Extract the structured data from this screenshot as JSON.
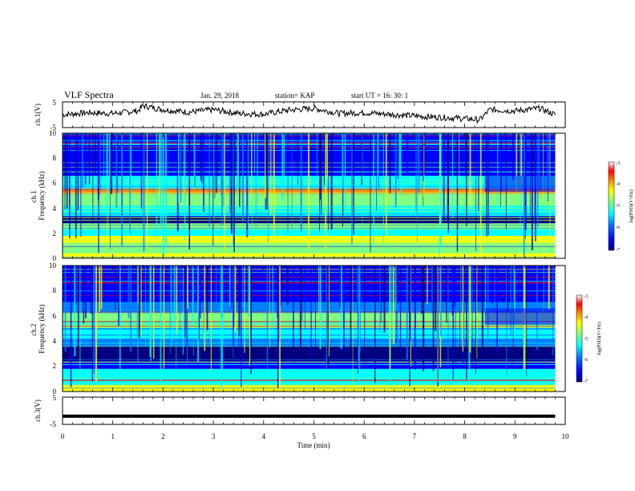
{
  "header": {
    "title": "VLF Spectra",
    "date": "Jan. 29, 2018",
    "station": "station= KAP",
    "start_ut": "start  UT =   16: 30: 1"
  },
  "colors": {
    "line": "#000000",
    "colormap": [
      "#000080",
      "#0000ff",
      "#0080ff",
      "#00ffff",
      "#80ff80",
      "#ffff00",
      "#ff8000",
      "#ff0000",
      "#ffffff"
    ]
  },
  "chart_data": [
    {
      "type": "line",
      "ylabel": "ch.1(V)",
      "xlim": [
        0,
        10
      ],
      "ylim": [
        -5,
        5
      ],
      "yticks": [
        "5",
        "-5"
      ],
      "x": [
        0,
        0.5,
        1,
        1.5,
        1.6,
        2,
        2.5,
        3,
        3.5,
        4,
        4.5,
        5,
        5.5,
        6,
        6.5,
        7,
        7.5,
        8,
        8.3,
        8.5,
        9,
        9.5,
        9.8
      ],
      "values": [
        0,
        0.8,
        0.5,
        1.5,
        3.5,
        2,
        1,
        2,
        0.5,
        0.2,
        1.8,
        2.5,
        0.5,
        0.8,
        0.2,
        -0.5,
        -1,
        -1.5,
        -2,
        2,
        1.5,
        2.5,
        0
      ]
    },
    {
      "type": "heatmap",
      "ylabel": "ch.1\nFrequency (kHz)",
      "xlim": [
        0,
        10
      ],
      "ylim": [
        0,
        10
      ],
      "yticks": [
        "0",
        "2",
        "4",
        "6",
        "8",
        "10"
      ],
      "colorbar": {
        "label": "log(PSD)(V²/Hz)",
        "range": [
          -7,
          -3
        ],
        "ticks": [
          "-3",
          "-4",
          "-5",
          "-6",
          "-7"
        ]
      }
    },
    {
      "type": "heatmap",
      "ylabel": "ch.2\nFrequency (kHz)",
      "xlim": [
        0,
        10
      ],
      "ylim": [
        0,
        10
      ],
      "yticks": [
        "0",
        "2",
        "4",
        "6",
        "8",
        "10"
      ],
      "colorbar": {
        "label": "log(PSD)(V²/Hz)",
        "range": [
          -7,
          -3
        ],
        "ticks": [
          "-3",
          "-4",
          "-5",
          "-6",
          "-7"
        ]
      }
    },
    {
      "type": "line",
      "ylabel": "ch.3(V)",
      "xlim": [
        0,
        10
      ],
      "ylim": [
        -5,
        5
      ],
      "yticks": [
        "5",
        "-5"
      ],
      "x": [
        0,
        9.8
      ],
      "values": [
        -2,
        -2
      ]
    }
  ],
  "xaxis": {
    "label": "Time  (min)",
    "ticks": [
      "0",
      "1",
      "2",
      "3",
      "4",
      "5",
      "6",
      "7",
      "8",
      "9",
      "10"
    ]
  }
}
